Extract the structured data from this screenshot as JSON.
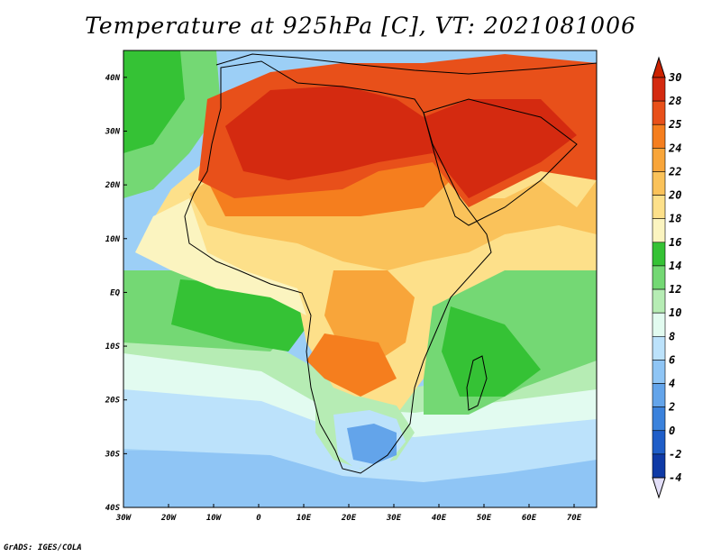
{
  "title": "Temperature at 925hPa [C], VT: 2021081006",
  "credit": "GrADS: IGES/COLA",
  "map": {
    "lat_labels": [
      "40N",
      "30N",
      "20N",
      "10N",
      "EQ",
      "10S",
      "20S",
      "30S",
      "40S"
    ],
    "lon_labels": [
      "30W",
      "20W",
      "10W",
      "0",
      "10E",
      "20E",
      "30E",
      "40E",
      "50E",
      "60E",
      "70E"
    ],
    "extent": {
      "lon": [
        -30,
        75
      ],
      "lat": [
        -40,
        45
      ]
    },
    "variable": "temperature",
    "level": "925hPa",
    "units": "C"
  },
  "colorbar": {
    "levels": [
      "30",
      "28",
      "25",
      "24",
      "22",
      "20",
      "18",
      "16",
      "14",
      "12",
      "10",
      "8",
      "6",
      "4",
      "2",
      "0",
      "-2",
      "-4"
    ],
    "colors": [
      "#d42a10",
      "#e8501a",
      "#f57e1e",
      "#f8a53a",
      "#fac25a",
      "#fde08a",
      "#fbf4c0",
      "#35c235",
      "#74d874",
      "#b6ecb4",
      "#e2fbf0",
      "#bce2fb",
      "#8fc5f5",
      "#63a4ea",
      "#3b82dc",
      "#1f5ec8",
      "#0f3aa6",
      "#101e6c"
    ],
    "top_color": "#cc2200",
    "bottom_color": "#e2def8"
  }
}
